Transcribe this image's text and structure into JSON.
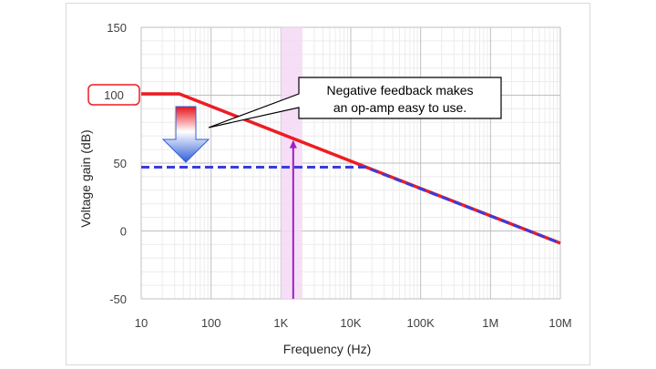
{
  "chart_data": {
    "type": "line",
    "xscale": "log",
    "x_ticks": [
      10,
      100,
      1000,
      10000,
      100000,
      1000000,
      10000000
    ],
    "x_tick_labels": [
      "10",
      "100",
      "1K",
      "10K",
      "100K",
      "1M",
      "10M"
    ],
    "xlim": [
      10,
      10000000
    ],
    "y_ticks": [
      150,
      100,
      50,
      0,
      -50
    ],
    "y_tick_labels": [
      "150",
      "100",
      "50",
      "0",
      "-50"
    ],
    "ylim": [
      -50,
      150
    ],
    "xlabel": "Frequency (Hz)",
    "ylabel": "Voltage gain (dB)",
    "grid": true,
    "series": [
      {
        "style": "solid",
        "color": "#ee1c24",
        "points": [
          [
            10,
            101
          ],
          [
            35,
            101
          ],
          [
            10000000,
            -9
          ]
        ]
      },
      {
        "style": "dashed",
        "color": "#3b3bdc",
        "points": [
          [
            10,
            47
          ],
          [
            16000,
            47
          ],
          [
            10000000,
            -9
          ]
        ]
      }
    ],
    "highlight_band": {
      "x_from": 1000,
      "x_to": 2000,
      "color": "#f4d8f4"
    },
    "marker_arrow": {
      "x": 1500,
      "y_from": -50,
      "y_to": 67,
      "color": "#a020c0"
    },
    "annotations": {
      "label_100": "100",
      "callout_line1": "Negative feedback makes",
      "callout_line2": "an op-amp easy to use."
    }
  }
}
